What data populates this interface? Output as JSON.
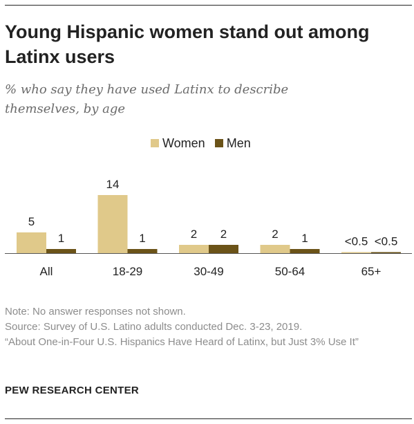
{
  "title": "Young Hispanic women stand out among Latinx users",
  "subtitle": "% who say they have used Latinx to describe themselves, by age",
  "chart_data": {
    "type": "bar",
    "categories": [
      "All",
      "18-29",
      "30-49",
      "50-64",
      "65+"
    ],
    "series": [
      {
        "name": "Women",
        "color": "#e0c98a",
        "values": [
          5,
          14,
          2,
          2,
          0.25
        ],
        "labels": [
          "5",
          "14",
          "2",
          "2",
          "<0.5"
        ]
      },
      {
        "name": "Men",
        "color": "#6b5318",
        "values": [
          1,
          1,
          2,
          1,
          0.25
        ],
        "labels": [
          "1",
          "1",
          "2",
          "1",
          "<0.5"
        ]
      }
    ],
    "title": "Young Hispanic women stand out among Latinx users",
    "subtitle": "% who say they have used Latinx to describe themselves, by age",
    "xlabel": "",
    "ylabel": "",
    "ylim": [
      0,
      14
    ],
    "grid": false,
    "legend": "top-center"
  },
  "notes": {
    "note": "Note: No answer responses not shown.",
    "source": "Source: Survey of U.S. Latino adults conducted Dec. 3-23, 2019.",
    "report": "“About One-in-Four U.S. Hispanics Have Heard of Latinx, but Just 3% Use It”"
  },
  "brand": "PEW RESEARCH CENTER"
}
